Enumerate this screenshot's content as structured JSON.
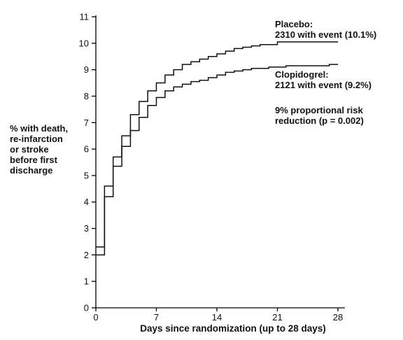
{
  "chart_data": {
    "type": "line",
    "step": true,
    "xlabel": "Days since randomization (up to 28 days)",
    "ylabel_lines": [
      "% with death,",
      "re-infarction",
      "or stroke",
      "before first",
      "discharge"
    ],
    "xlim": [
      0,
      28
    ],
    "ylim": [
      0,
      11
    ],
    "xticks": [
      0,
      7,
      14,
      21,
      28
    ],
    "yticks": [
      0,
      1,
      2,
      3,
      4,
      5,
      6,
      7,
      8,
      9,
      10,
      11
    ],
    "grid": false,
    "series": [
      {
        "name": "Placebo",
        "x": [
          0,
          1,
          2,
          3,
          4,
          5,
          6,
          7,
          8,
          9,
          10,
          11,
          12,
          13,
          14,
          15,
          16,
          17,
          18,
          19,
          21,
          28
        ],
        "y": [
          2.3,
          4.6,
          5.7,
          6.5,
          7.3,
          7.8,
          8.2,
          8.5,
          8.8,
          9.0,
          9.2,
          9.3,
          9.4,
          9.5,
          9.6,
          9.7,
          9.8,
          9.85,
          9.9,
          9.95,
          10.05,
          10.05
        ]
      },
      {
        "name": "Clopidogrel",
        "x": [
          0,
          1,
          2,
          3,
          4,
          5,
          6,
          7,
          8,
          9,
          10,
          11,
          12,
          13,
          14,
          15,
          16,
          17,
          18,
          20,
          22,
          27,
          28
        ],
        "y": [
          2.0,
          4.2,
          5.35,
          6.1,
          6.7,
          7.2,
          7.65,
          7.95,
          8.2,
          8.35,
          8.45,
          8.55,
          8.6,
          8.7,
          8.8,
          8.9,
          8.95,
          9.0,
          9.05,
          9.1,
          9.15,
          9.2,
          9.2
        ]
      }
    ],
    "annotations": {
      "placebo": [
        "Placebo:",
        "2310 with event (10.1%)"
      ],
      "clopidogrel": [
        "Clopidogrel:",
        "2121 with event (9.2%)"
      ],
      "risk": [
        "9% proportional risk",
        "reduction (p = 0.002)"
      ]
    }
  }
}
